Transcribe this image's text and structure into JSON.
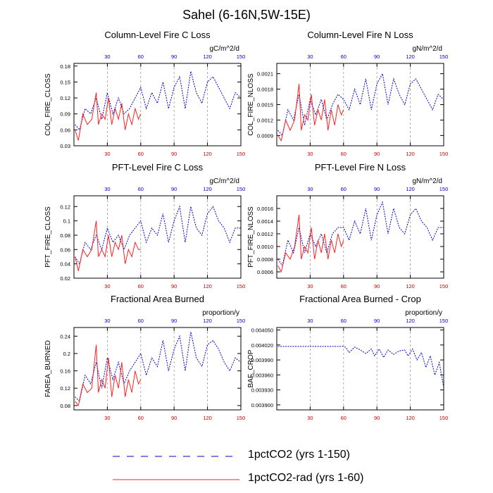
{
  "title": "Sahel (6-16N,5W-15E)",
  "colors": {
    "series_a": "#0000cc",
    "series_b": "#ff2222",
    "top_ticks": "#0000cc",
    "bottom_ticks": "#cc0000",
    "grid": "#999999"
  },
  "legend": [
    {
      "label": "1pctCO2 (yrs 1-150)",
      "style": "dashed",
      "color": "#0000cc"
    },
    {
      "label": "1pctCO2-rad (yrs 1-60)",
      "style": "solid",
      "color": "#ff2222"
    }
  ],
  "chart_data": [
    {
      "type": "line",
      "title": "Column-Level Fire C Loss",
      "ylabel": "COL_FIRE_CLOSS",
      "units": "gC/m^2/d",
      "xlim": [
        0,
        150
      ],
      "ylim": [
        0.03,
        0.185
      ],
      "yticks": [
        "0.03",
        "0.06",
        "0.09",
        "0.12",
        "0.15",
        "0.18"
      ],
      "xticks_top": [
        "30",
        "60",
        "90",
        "120",
        "150"
      ],
      "xticks_bottom": [
        "30",
        "60",
        "90",
        "120",
        "150"
      ],
      "grid_x": [
        30,
        60,
        90,
        120
      ],
      "series": [
        {
          "x": [
            1,
            5,
            10,
            15,
            20,
            25,
            30,
            35,
            40,
            45,
            50,
            55,
            60,
            65,
            70,
            75,
            80,
            85,
            90,
            95,
            100,
            105,
            110,
            115,
            120,
            125,
            130,
            135,
            140,
            145,
            150
          ],
          "y": [
            0.07,
            0.06,
            0.1,
            0.09,
            0.12,
            0.08,
            0.13,
            0.09,
            0.12,
            0.09,
            0.1,
            0.12,
            0.14,
            0.1,
            0.13,
            0.11,
            0.15,
            0.1,
            0.14,
            0.16,
            0.1,
            0.17,
            0.13,
            0.11,
            0.15,
            0.16,
            0.14,
            0.12,
            0.1,
            0.13,
            0.12
          ]
        },
        {
          "x": [
            1,
            4,
            8,
            12,
            16,
            20,
            22,
            25,
            28,
            31,
            34,
            37,
            40,
            43,
            46,
            49,
            52,
            55,
            58,
            60
          ],
          "y": [
            0.06,
            0.04,
            0.09,
            0.07,
            0.08,
            0.13,
            0.07,
            0.09,
            0.08,
            0.12,
            0.07,
            0.1,
            0.08,
            0.11,
            0.06,
            0.09,
            0.07,
            0.1,
            0.08,
            0.09
          ]
        }
      ]
    },
    {
      "type": "line",
      "title": "Column-Level Fire N Loss",
      "ylabel": "COL_FIRE_NLOSS",
      "units": "gN/m^2/d",
      "xlim": [
        0,
        150
      ],
      "ylim": [
        0.0007,
        0.0023
      ],
      "yticks": [
        "0.0009",
        "0.0012",
        "0.0015",
        "0.0018",
        "0.0021"
      ],
      "xticks_top": [
        "30",
        "60",
        "90",
        "120",
        "150"
      ],
      "xticks_bottom": [
        "30",
        "60",
        "90",
        "120",
        "150"
      ],
      "grid_x": [
        30,
        60,
        90,
        120
      ],
      "series": [
        {
          "x": [
            1,
            5,
            10,
            15,
            20,
            25,
            30,
            35,
            40,
            45,
            50,
            55,
            60,
            65,
            70,
            75,
            80,
            85,
            90,
            95,
            100,
            105,
            110,
            115,
            120,
            125,
            130,
            135,
            140,
            145,
            150
          ],
          "y": [
            0.001,
            0.0009,
            0.0014,
            0.0012,
            0.0017,
            0.0011,
            0.0016,
            0.0013,
            0.0016,
            0.0012,
            0.0015,
            0.0017,
            0.0016,
            0.0014,
            0.0018,
            0.0015,
            0.002,
            0.0014,
            0.0019,
            0.0021,
            0.0015,
            0.002,
            0.0017,
            0.0015,
            0.0019,
            0.002,
            0.0018,
            0.0016,
            0.0014,
            0.0017,
            0.0016
          ]
        },
        {
          "x": [
            1,
            4,
            8,
            12,
            16,
            20,
            22,
            25,
            28,
            31,
            34,
            37,
            40,
            43,
            46,
            49,
            52,
            55,
            58,
            60
          ],
          "y": [
            0.0009,
            0.0008,
            0.0012,
            0.001,
            0.0012,
            0.0019,
            0.001,
            0.0013,
            0.0012,
            0.0017,
            0.0011,
            0.0014,
            0.0012,
            0.0016,
            0.001,
            0.0014,
            0.0011,
            0.0015,
            0.0013,
            0.0014
          ]
        }
      ]
    },
    {
      "type": "line",
      "title": "PFT-Level Fire C Loss",
      "ylabel": "PFT_FIRE_CLOSS",
      "units": "gC/m^2/d",
      "xlim": [
        0,
        150
      ],
      "ylim": [
        0.02,
        0.135
      ],
      "yticks": [
        "0.02",
        "0.04",
        "0.06",
        "0.08",
        "0.1",
        "0.12"
      ],
      "xticks_top": [
        "30",
        "60",
        "90",
        "120",
        "150"
      ],
      "xticks_bottom": [
        "30",
        "60",
        "90",
        "120",
        "150"
      ],
      "grid_x": [
        30,
        60,
        90,
        120
      ],
      "series": [
        {
          "x": [
            1,
            5,
            10,
            15,
            20,
            25,
            30,
            35,
            40,
            45,
            50,
            55,
            60,
            65,
            70,
            75,
            80,
            85,
            90,
            95,
            100,
            105,
            110,
            115,
            120,
            125,
            130,
            135,
            140,
            145,
            150
          ],
          "y": [
            0.05,
            0.04,
            0.07,
            0.06,
            0.08,
            0.06,
            0.09,
            0.07,
            0.08,
            0.06,
            0.08,
            0.09,
            0.1,
            0.07,
            0.09,
            0.08,
            0.11,
            0.07,
            0.1,
            0.12,
            0.07,
            0.12,
            0.09,
            0.08,
            0.11,
            0.12,
            0.1,
            0.09,
            0.07,
            0.09,
            0.09
          ]
        },
        {
          "x": [
            1,
            4,
            8,
            12,
            16,
            20,
            22,
            25,
            28,
            31,
            34,
            37,
            40,
            43,
            46,
            49,
            52,
            55,
            58,
            60
          ],
          "y": [
            0.05,
            0.03,
            0.06,
            0.05,
            0.06,
            0.1,
            0.05,
            0.06,
            0.05,
            0.08,
            0.05,
            0.07,
            0.06,
            0.08,
            0.04,
            0.06,
            0.05,
            0.07,
            0.06,
            0.06
          ]
        }
      ]
    },
    {
      "type": "line",
      "title": "PFT-Level Fire N Loss",
      "ylabel": "PFT_FIRE_NLOSS",
      "units": "gN/m^2/d",
      "xlim": [
        0,
        150
      ],
      "ylim": [
        0.0005,
        0.0018
      ],
      "yticks": [
        "0.0006",
        "0.0008",
        "0.0010",
        "0.0012",
        "0.0014",
        "0.0016"
      ],
      "xticks_top": [
        "30",
        "60",
        "90",
        "120",
        "150"
      ],
      "xticks_bottom": [
        "30",
        "60",
        "90",
        "120",
        "150"
      ],
      "grid_x": [
        30,
        60,
        90,
        120
      ],
      "series": [
        {
          "x": [
            1,
            5,
            10,
            15,
            20,
            25,
            30,
            35,
            40,
            45,
            50,
            55,
            60,
            65,
            70,
            75,
            80,
            85,
            90,
            95,
            100,
            105,
            110,
            115,
            120,
            125,
            130,
            135,
            140,
            145,
            150
          ],
          "y": [
            0.0008,
            0.0007,
            0.0011,
            0.0009,
            0.0013,
            0.0009,
            0.0012,
            0.001,
            0.0012,
            0.0009,
            0.0012,
            0.0013,
            0.0013,
            0.0011,
            0.0014,
            0.0012,
            0.0016,
            0.0011,
            0.0015,
            0.0017,
            0.0012,
            0.0016,
            0.0013,
            0.0012,
            0.0015,
            0.0016,
            0.0014,
            0.0013,
            0.0011,
            0.0013,
            0.0013
          ]
        },
        {
          "x": [
            1,
            4,
            8,
            12,
            16,
            20,
            22,
            25,
            28,
            31,
            34,
            37,
            40,
            43,
            46,
            49,
            52,
            55,
            58,
            60
          ],
          "y": [
            0.0007,
            0.0006,
            0.0009,
            0.0008,
            0.001,
            0.0015,
            0.0008,
            0.001,
            0.0009,
            0.0013,
            0.0008,
            0.0011,
            0.0009,
            0.0012,
            0.0008,
            0.0011,
            0.0009,
            0.0012,
            0.001,
            0.0011
          ]
        }
      ]
    },
    {
      "type": "line",
      "title": "Fractional Area Burned",
      "ylabel": "FAREA_BURNED",
      "units": "proportion/y",
      "xlim": [
        0,
        150
      ],
      "ylim": [
        0.07,
        0.26
      ],
      "yticks": [
        "0.08",
        "0.12",
        "0.16",
        "0.2",
        "0.24"
      ],
      "xticks_top": [
        "30",
        "60",
        "90",
        "120",
        "150"
      ],
      "xticks_bottom": [
        "30",
        "60",
        "90",
        "120",
        "150"
      ],
      "grid_x": [
        30,
        60,
        90,
        120
      ],
      "series": [
        {
          "x": [
            1,
            5,
            10,
            15,
            20,
            25,
            30,
            35,
            40,
            45,
            50,
            55,
            60,
            65,
            70,
            75,
            80,
            85,
            90,
            95,
            100,
            105,
            110,
            115,
            120,
            125,
            130,
            135,
            140,
            145,
            150
          ],
          "y": [
            0.1,
            0.09,
            0.15,
            0.13,
            0.18,
            0.12,
            0.19,
            0.14,
            0.18,
            0.13,
            0.16,
            0.18,
            0.2,
            0.15,
            0.19,
            0.17,
            0.23,
            0.16,
            0.21,
            0.24,
            0.16,
            0.25,
            0.19,
            0.17,
            0.22,
            0.23,
            0.21,
            0.18,
            0.16,
            0.19,
            0.18
          ]
        },
        {
          "x": [
            1,
            4,
            8,
            12,
            16,
            20,
            22,
            25,
            28,
            31,
            34,
            37,
            40,
            43,
            46,
            49,
            52,
            55,
            58,
            60
          ],
          "y": [
            0.09,
            0.08,
            0.13,
            0.11,
            0.12,
            0.22,
            0.11,
            0.14,
            0.12,
            0.19,
            0.1,
            0.15,
            0.12,
            0.18,
            0.1,
            0.14,
            0.11,
            0.16,
            0.13,
            0.14
          ]
        }
      ]
    },
    {
      "type": "line",
      "title": "Fractional Area Burned - Crop",
      "ylabel": "BAF_CROP",
      "units": "proportion/y",
      "xlim": [
        0,
        150
      ],
      "ylim": [
        0.00389,
        0.004055
      ],
      "yticks": [
        "0.003900",
        "0.003930",
        "0.003960",
        "0.003990",
        "0.004020",
        "0.004050"
      ],
      "xticks_top": [
        "30",
        "60",
        "90",
        "120",
        "150"
      ],
      "xticks_bottom": [
        "30",
        "60",
        "90",
        "120",
        "150"
      ],
      "grid_x": [
        30,
        60,
        90,
        120
      ],
      "series": [
        {
          "x": [
            1,
            20,
            40,
            60,
            62,
            65,
            70,
            75,
            80,
            85,
            88,
            92,
            96,
            100,
            105,
            110,
            115,
            118,
            122,
            126,
            130,
            134,
            138,
            142,
            146,
            150
          ],
          "y": [
            0.004017,
            0.004017,
            0.004017,
            0.004017,
            0.004015,
            0.004005,
            0.004016,
            0.00401,
            0.004003,
            0.004012,
            0.003998,
            0.004012,
            0.003995,
            0.00401,
            0.004001,
            0.004008,
            0.00401,
            0.003998,
            0.004012,
            0.00399,
            0.004005,
            0.003975,
            0.003998,
            0.00396,
            0.003985,
            0.003935
          ]
        }
      ]
    }
  ]
}
